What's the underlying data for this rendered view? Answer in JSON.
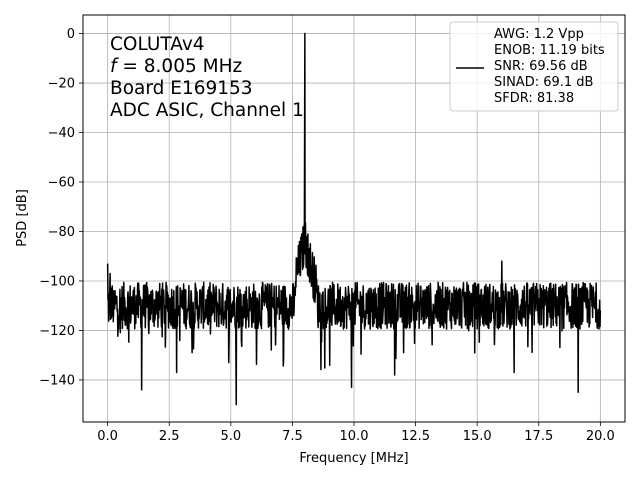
{
  "chart_data": {
    "type": "line",
    "title": "",
    "xlabel": "Frequency [MHz]",
    "ylabel": "PSD [dB]",
    "xlim": [
      -1.0,
      21.0
    ],
    "ylim": [
      -157,
      7.5
    ],
    "xticks": [
      0.0,
      2.5,
      5.0,
      7.5,
      10.0,
      12.5,
      15.0,
      17.5,
      20.0
    ],
    "xtick_labels": [
      "0.0",
      "2.5",
      "5.0",
      "7.5",
      "10.0",
      "12.5",
      "15.0",
      "17.5",
      "20.0"
    ],
    "yticks": [
      0,
      -20,
      -40,
      -60,
      -80,
      -100,
      -120,
      -140
    ],
    "ytick_labels": [
      "0",
      "−20",
      "−40",
      "−60",
      "−80",
      "−100",
      "−120",
      "−140"
    ],
    "grid": true,
    "legend_position": "top-right",
    "annotation_lines": [
      "COLUTAv4",
      "f = 8.005 MHz",
      "Board E169153",
      "ADC ASIC, Channel  1"
    ],
    "legend_lines": [
      "AWG: 1.2 Vpp",
      "ENOB: 11.19 bits",
      "SNR: 69.56 dB",
      "SINAD: 69.1 dB",
      "SFDR: 81.38"
    ],
    "series": [
      {
        "color": "#000000",
        "noise_floor_db": -110,
        "noise_band_db": [
          -120,
          -101
        ],
        "fundamental": {
          "x": 8.005,
          "y": 0
        },
        "fundamental_skirt": {
          "x": [
            7.6,
            8.5
          ],
          "peak_db": -84
        },
        "points": [
          {
            "x": 0.0,
            "y": -93
          },
          {
            "x": 0.05,
            "y": -112
          },
          {
            "x": 0.1,
            "y": -97
          },
          {
            "x": 0.15,
            "y": -115
          },
          {
            "x": 0.25,
            "y": -104
          },
          {
            "x": 1.38,
            "y": -144
          },
          {
            "x": 2.8,
            "y": -137
          },
          {
            "x": 5.22,
            "y": -150
          },
          {
            "x": 7.7,
            "y": -92
          },
          {
            "x": 7.9,
            "y": -84
          },
          {
            "x": 8.005,
            "y": 0
          },
          {
            "x": 8.1,
            "y": -82
          },
          {
            "x": 8.3,
            "y": -98
          },
          {
            "x": 9.9,
            "y": -143
          },
          {
            "x": 11.65,
            "y": -138
          },
          {
            "x": 16.0,
            "y": -92
          },
          {
            "x": 16.5,
            "y": -137
          },
          {
            "x": 19.1,
            "y": -145
          },
          {
            "x": 20.0,
            "y": -112
          }
        ]
      }
    ]
  }
}
